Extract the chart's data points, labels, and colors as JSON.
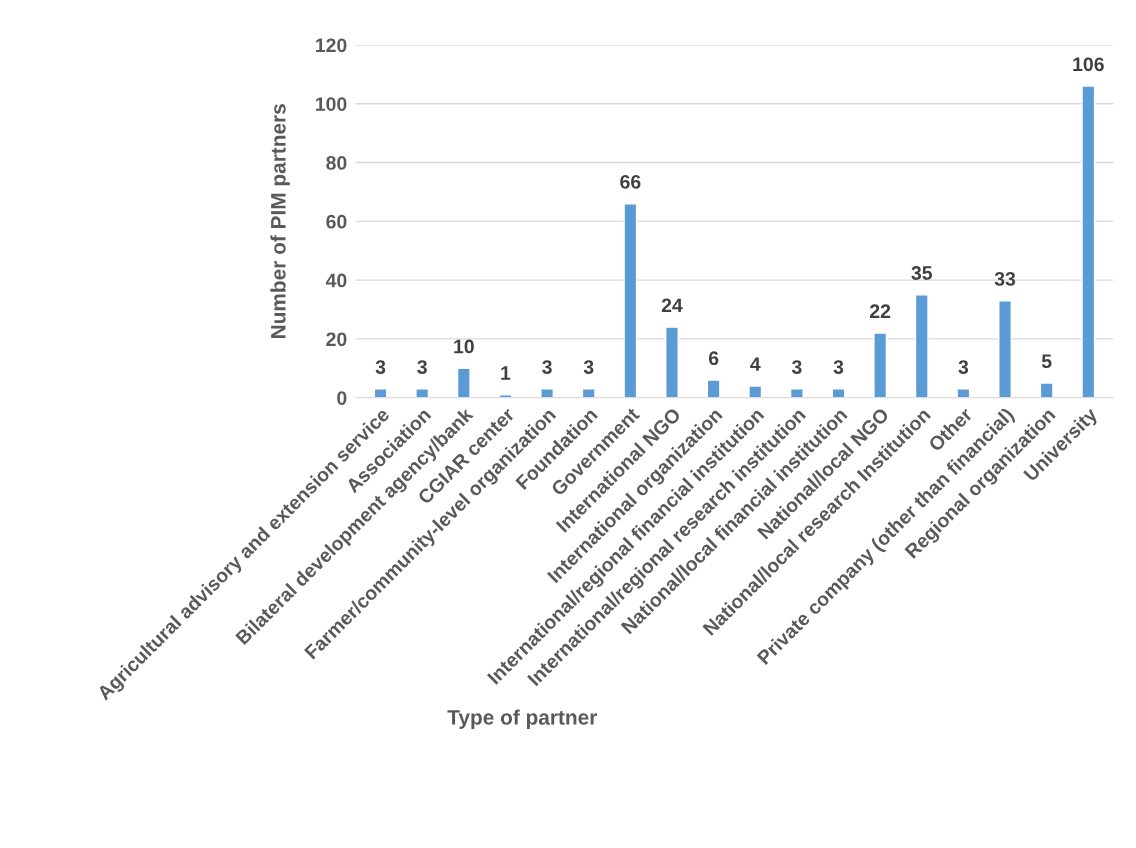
{
  "chart_data": {
    "type": "bar",
    "xlabel": "Type of partner",
    "ylabel": "Number of PIM partners",
    "categories": [
      "Agricultural advisory and extension service",
      "Association",
      "Bilateral development agency/bank",
      "CGIAR center",
      "Farmer/community-level organization",
      "Foundation",
      "Government",
      "International NGO",
      "International organization",
      "International/regional financial institution",
      "International/regional research institution",
      "National/local financial institution",
      "National/local NGO",
      "National/local research Institution",
      "Other",
      "Private company (other than financial)",
      "Regional organization",
      "University"
    ],
    "values": [
      3,
      3,
      10,
      1,
      3,
      3,
      66,
      24,
      6,
      4,
      3,
      3,
      22,
      35,
      3,
      33,
      5,
      106
    ],
    "color": "#5b9bd5",
    "ylim": [
      0,
      120
    ],
    "yticks": [
      0,
      20,
      40,
      60,
      80,
      100,
      120
    ],
    "grid": "y",
    "data_labels": true
  }
}
